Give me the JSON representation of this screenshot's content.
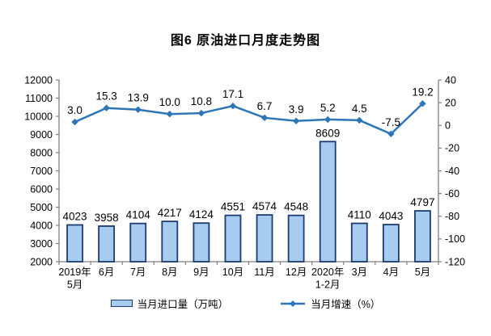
{
  "chart_data": {
    "type": "bar+line combo",
    "title": "图6 原油进口月度走势图",
    "categories": [
      "2019年\n5月",
      "6月",
      "7月",
      "8月",
      "9月",
      "10月",
      "11月",
      "12月",
      "2020年\n1-2月",
      "3月",
      "4月",
      "5月"
    ],
    "series": [
      {
        "name": "当月进口量（万吨）",
        "type": "bar",
        "axis": "left",
        "values": [
          4023,
          3958,
          4104,
          4217,
          4124,
          4551,
          4574,
          4548,
          8609,
          4110,
          4043,
          4797
        ],
        "label_decimals": 0,
        "fill": "#A8CCEF",
        "stroke": "#1A3C6E"
      },
      {
        "name": "当月增速（%）",
        "type": "line",
        "axis": "right",
        "values": [
          3.0,
          15.3,
          13.9,
          10.0,
          10.8,
          17.1,
          6.7,
          3.9,
          5.2,
          4.5,
          -7.5,
          19.2
        ],
        "label_decimals": 1,
        "color": "#2E75B6"
      }
    ],
    "left_axis": {
      "min": 2000,
      "max": 12000,
      "step": 1000
    },
    "right_axis": {
      "min": -120,
      "max": 40,
      "step": 20
    },
    "axis_line_color": "#808080",
    "grid": false,
    "legend_position": "bottom",
    "data_labels": true
  }
}
